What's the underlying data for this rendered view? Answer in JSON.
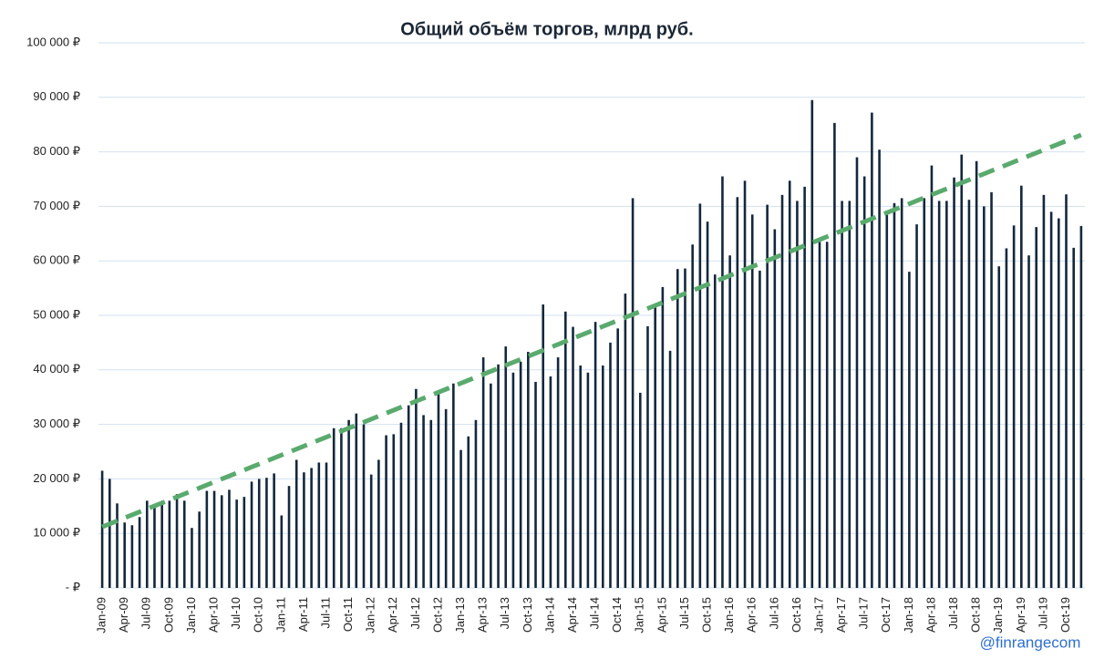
{
  "chart_data": {
    "type": "bar",
    "title": "Общий объём торгов, млрд руб.",
    "categories": [
      "Jan-09",
      null,
      null,
      "Apr-09",
      null,
      null,
      "Jul-09",
      null,
      null,
      "Oct-09",
      null,
      null,
      "Jan-10",
      null,
      null,
      "Apr-10",
      null,
      null,
      "Jul-10",
      null,
      null,
      "Oct-10",
      null,
      null,
      "Jan-11",
      null,
      null,
      "Apr-11",
      null,
      null,
      "Jul-11",
      null,
      null,
      "Oct-11",
      null,
      null,
      "Jan-12",
      null,
      null,
      "Apr-12",
      null,
      null,
      "Jul-12",
      null,
      null,
      "Oct-12",
      null,
      null,
      "Jan-13",
      null,
      null,
      "Apr-13",
      null,
      null,
      "Jul-13",
      null,
      null,
      "Oct-13",
      null,
      null,
      "Jan-14",
      null,
      null,
      "Apr-14",
      null,
      null,
      "Jul-14",
      null,
      null,
      "Oct-14",
      null,
      null,
      "Jan-15",
      null,
      null,
      "Apr-15",
      null,
      null,
      "Jul-15",
      null,
      null,
      "Oct-15",
      null,
      null,
      "Jan-16",
      null,
      null,
      "Apr-16",
      null,
      null,
      "Jul-16",
      null,
      null,
      "Oct-16",
      null,
      null,
      "Jan-17",
      null,
      null,
      "Apr-17",
      null,
      null,
      "Jul-17",
      null,
      null,
      "Oct-17",
      null,
      null,
      "Jan-18",
      null,
      null,
      "Apr-18",
      null,
      null,
      "Jul-18",
      null,
      null,
      "Oct-18",
      null,
      null,
      "Jan-19",
      null,
      null,
      "Apr-19",
      null,
      null,
      "Jul-19",
      null,
      null,
      "Oct-19",
      null,
      null
    ],
    "values": [
      21500,
      20000,
      15500,
      12000,
      11500,
      13000,
      16000,
      15000,
      15500,
      16000,
      17200,
      16000,
      11000,
      14000,
      17800,
      17800,
      17000,
      18000,
      16200,
      16700,
      19500,
      20000,
      20200,
      21000,
      13300,
      18700,
      23500,
      21200,
      22000,
      23000,
      23000,
      29300,
      29300,
      30800,
      32000,
      30000,
      20800,
      23500,
      28000,
      28200,
      30300,
      33500,
      36500,
      31700,
      30800,
      36000,
      32800,
      37500,
      25300,
      27800,
      30800,
      42300,
      37500,
      41000,
      44300,
      39500,
      41500,
      43300,
      37800,
      52000,
      38800,
      42300,
      50700,
      47900,
      40800,
      39500,
      48800,
      40800,
      45000,
      47600,
      54000,
      71500,
      35800,
      48000,
      51500,
      55200,
      43500,
      58500,
      58600,
      63000,
      70500,
      67200,
      57500,
      75500,
      61000,
      71700,
      74700,
      68500,
      58200,
      70300,
      65800,
      72100,
      74700,
      71000,
      73600,
      89500,
      63500,
      63500,
      85300,
      71000,
      71000,
      79000,
      75500,
      87200,
      80400,
      69200,
      70600,
      71500,
      58000,
      66700,
      71500,
      77500,
      71000,
      71000,
      75300,
      79500,
      71200,
      78300,
      70000,
      72600,
      59000,
      62300,
      66500,
      73800,
      61000,
      66200,
      72100,
      69000,
      67800,
      72200,
      62400,
      66400
    ],
    "color": "#14283c",
    "trendline": {
      "start": 11200,
      "end": 83100,
      "color": "#5aaa6e"
    },
    "ylim": [
      0,
      100000
    ],
    "yticks": [
      {
        "value": 0,
        "label": "-   ₽"
      },
      {
        "value": 10000,
        "label": "10 000 ₽"
      },
      {
        "value": 20000,
        "label": "20 000 ₽"
      },
      {
        "value": 30000,
        "label": "30 000 ₽"
      },
      {
        "value": 40000,
        "label": "40 000 ₽"
      },
      {
        "value": 50000,
        "label": "50 000 ₽"
      },
      {
        "value": 60000,
        "label": "60 000 ₽"
      },
      {
        "value": 70000,
        "label": "70 000 ₽"
      },
      {
        "value": 80000,
        "label": "80 000 ₽"
      },
      {
        "value": 90000,
        "label": "90 000 ₽"
      },
      {
        "value": 100000,
        "label": "100 000 ₽"
      }
    ],
    "grid": true,
    "annotations": [
      "@finrangecom"
    ]
  }
}
